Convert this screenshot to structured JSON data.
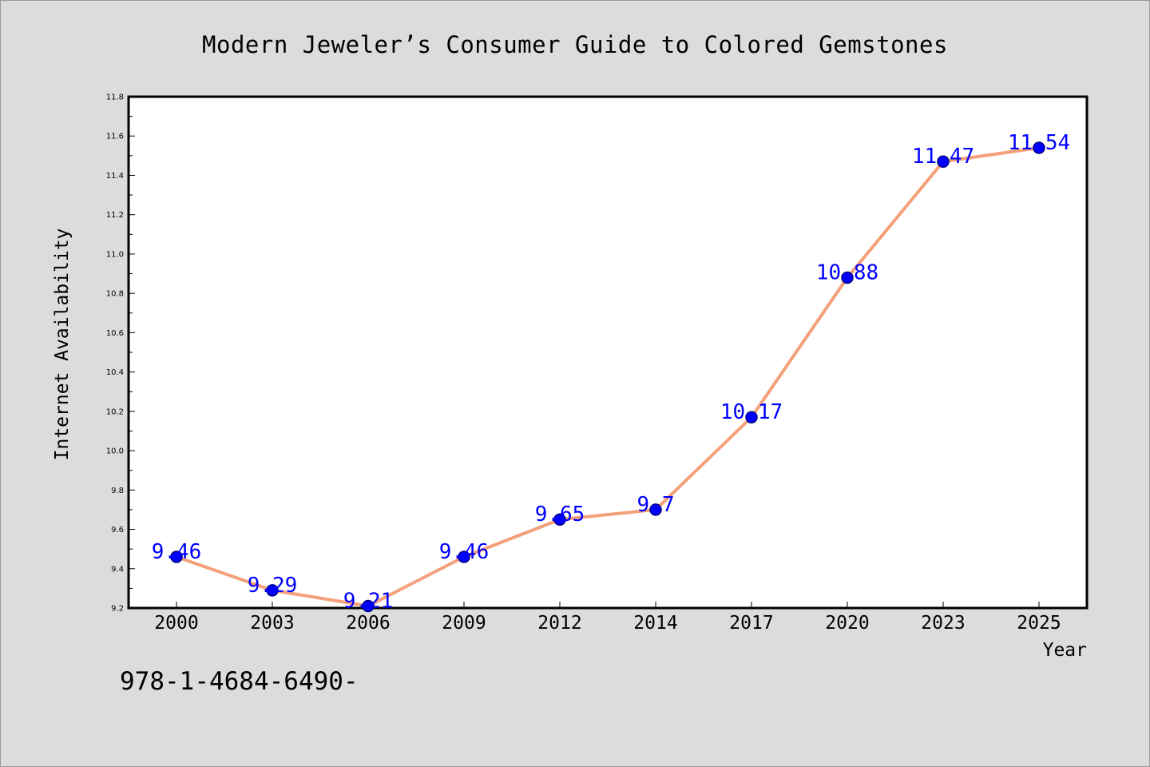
{
  "chart_data": {
    "type": "line",
    "title": "Modern Jeweler’s Consumer Guide to Colored Gemstones",
    "xlabel": "Year",
    "ylabel": "Internet Availability",
    "categories": [
      "2000",
      "2003",
      "2006",
      "2009",
      "2012",
      "2014",
      "2017",
      "2020",
      "2023",
      "2025"
    ],
    "values": [
      9.46,
      9.29,
      9.21,
      9.46,
      9.65,
      9.7,
      10.17,
      10.88,
      11.47,
      11.54
    ],
    "value_labels": [
      "9.46",
      "9.29",
      "9.21",
      "9.46",
      "9.65",
      "9.7",
      "10.17",
      "10.88",
      "11.47",
      "11.54"
    ],
    "ylim": [
      9.2,
      11.8
    ],
    "yticks": [
      "9.2",
      "9.4",
      "9.6",
      "9.8",
      "10.0",
      "10.2",
      "10.4",
      "10.6",
      "10.8",
      "11.0",
      "11.2",
      "11.4",
      "11.6",
      "11.8"
    ],
    "grid": false,
    "colors": {
      "line": "#f4a07a",
      "marker": "#0000ff",
      "marker_edge": "#000080",
      "label": "#0000ff",
      "plot_background": "#ffffff",
      "figure_background": "#dcdcdc"
    }
  },
  "footer_text": "978-1-4684-6490-"
}
